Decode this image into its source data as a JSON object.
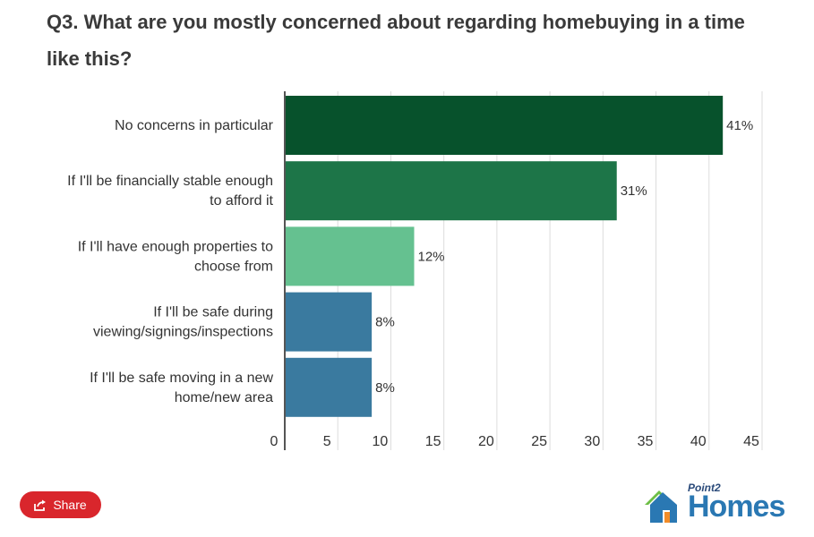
{
  "title": "Q3. What are you mostly concerned about regarding homebuying in a time like this?",
  "share_label": "Share",
  "logo": {
    "small": "Point2",
    "main": "Homes"
  },
  "chart_data": {
    "type": "bar",
    "orientation": "horizontal",
    "categories": [
      [
        "No concerns in particular"
      ],
      [
        "If I'll be financially stable enough",
        "to afford it"
      ],
      [
        "If I'll have enough properties to",
        "choose from"
      ],
      [
        "If I'll be safe during",
        "viewing/signings/inspections"
      ],
      [
        "If I'll be safe moving in a new",
        "home/new area"
      ]
    ],
    "values": [
      41.3,
      31.3,
      12.2,
      8.2,
      8.2
    ],
    "value_labels": [
      "41%",
      "31%",
      "12%",
      "8%",
      "8%"
    ],
    "colors": [
      "#07522c",
      "#1d7548",
      "#65c190",
      "#3a7a9f",
      "#3a7a9f"
    ],
    "xlim": [
      0,
      45
    ],
    "ticks": [
      "0",
      "5",
      "10",
      "15",
      "20",
      "25",
      "30",
      "35",
      "40",
      "45"
    ],
    "grid": true
  }
}
